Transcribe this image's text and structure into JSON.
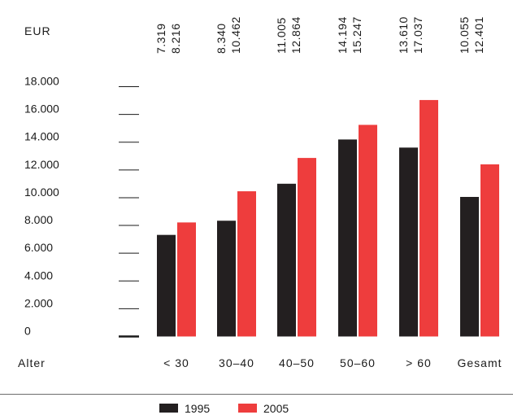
{
  "chart_data": {
    "type": "bar",
    "unit_label": "EUR",
    "x_axis_label": "Alter",
    "categories": [
      "< 30",
      "30–40",
      "40–50",
      "50–60",
      "> 60",
      "Gesamt"
    ],
    "series": [
      {
        "name": "1995",
        "color": "#231f20",
        "values": [
          7319,
          8340,
          11005,
          14194,
          13610,
          10055
        ]
      },
      {
        "name": "2005",
        "color": "#ee3d3d",
        "values": [
          8216,
          10462,
          12864,
          15247,
          17037,
          12401
        ]
      }
    ],
    "value_labels": [
      [
        "7.319",
        "8.216"
      ],
      [
        "8.340",
        "10.462"
      ],
      [
        "11.005",
        "12.864"
      ],
      [
        "14.194",
        "15.247"
      ],
      [
        "13.610",
        "17.037"
      ],
      [
        "10.055",
        "12.401"
      ]
    ],
    "y_ticks": [
      "0",
      "2.000",
      "4.000",
      "6.000",
      "8.000",
      "10.000",
      "12.000",
      "14.000",
      "16.000",
      "18.000"
    ],
    "ylim": [
      0,
      18000
    ],
    "legend_position": "bottom"
  }
}
